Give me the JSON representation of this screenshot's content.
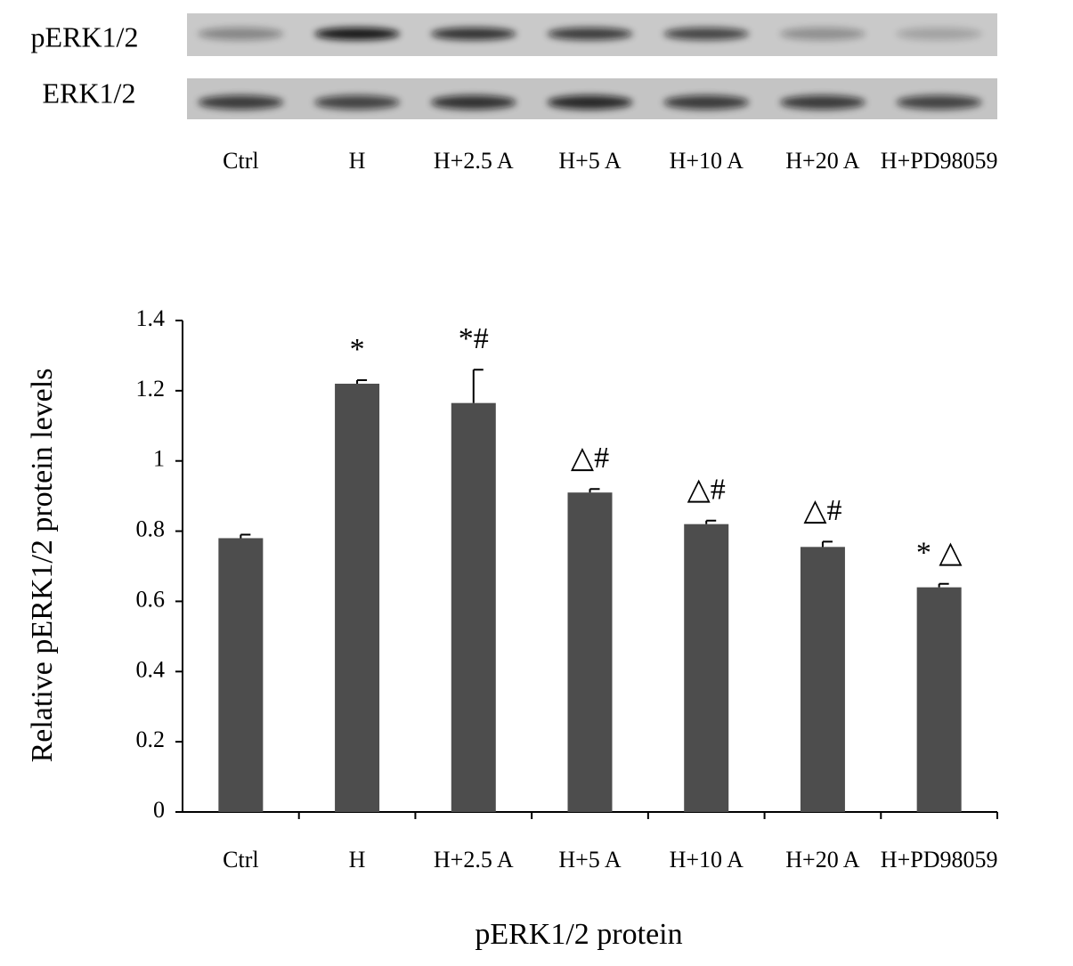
{
  "chart_data": {
    "type": "bar",
    "blot": {
      "rows": [
        "pERK1/2",
        "ERK1/2"
      ],
      "lanes": [
        "Ctrl",
        "H",
        "H+2.5 A",
        "H+5 A",
        "H+10 A",
        "H+20 A",
        "H+PD98059"
      ]
    },
    "categories": [
      "Ctrl",
      "H",
      "H+2.5 A",
      "H+5 A",
      "H+10 A",
      "H+20 A",
      "H+PD98059"
    ],
    "values": [
      0.78,
      1.22,
      1.165,
      0.91,
      0.82,
      0.755,
      0.64
    ],
    "errors": [
      0.01,
      0.01,
      0.095,
      0.01,
      0.01,
      0.015,
      0.01
    ],
    "annotations": [
      null,
      "*",
      "*#",
      "△#",
      "△#",
      "△#",
      "* △"
    ],
    "color": "#4d4d4d",
    "ylim": [
      0,
      1.4
    ],
    "yticks": [
      0,
      0.2,
      0.4,
      0.6,
      0.8,
      1,
      1.2,
      1.4
    ],
    "ylabel": "Relative pERK1/2 protein levels",
    "xlabel": "pERK1/2 protein"
  }
}
